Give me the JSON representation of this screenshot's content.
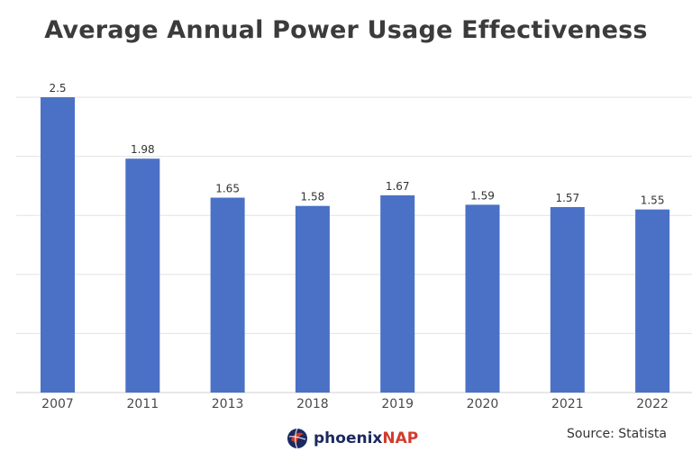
{
  "chart_data": {
    "type": "bar",
    "title": "Average Annual Power Usage Effectiveness",
    "categories": [
      "2007",
      "2011",
      "2013",
      "2018",
      "2019",
      "2020",
      "2021",
      "2022"
    ],
    "values": [
      2.5,
      1.98,
      1.65,
      1.58,
      1.67,
      1.59,
      1.57,
      1.55
    ],
    "data_labels": [
      "2.5",
      "1.98",
      "1.65",
      "1.58",
      "1.67",
      "1.59",
      "1.57",
      "1.55"
    ],
    "xlabel": "",
    "ylabel": "",
    "ylim": [
      0,
      2.5
    ],
    "grid": true,
    "bar_color": "#4a71c6"
  },
  "footer": {
    "logo_brand": "phoenix",
    "logo_brand_accent": "NAP",
    "source": "Source: Statista"
  }
}
